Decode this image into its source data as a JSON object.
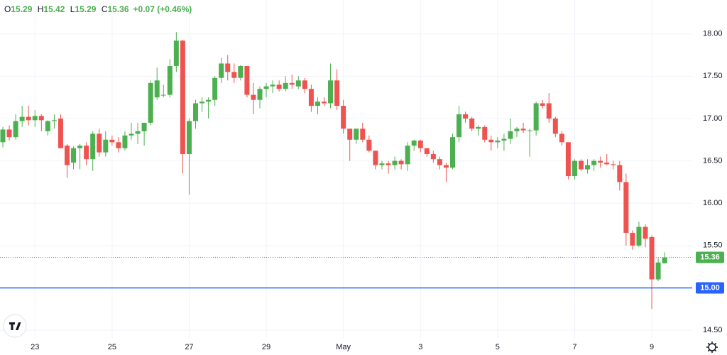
{
  "chart_data": {
    "type": "candlestick",
    "ohlc_labels": [
      "O",
      "H",
      "L",
      "C"
    ],
    "ohlc_values": [
      15.29,
      15.42,
      15.29,
      15.36
    ],
    "change": "+0.07 (+0.46%)",
    "categories": [
      null,
      null,
      null,
      null,
      null,
      "23",
      null,
      null,
      null,
      null,
      null,
      null,
      null,
      null,
      null,
      null,
      null,
      "25",
      null,
      null,
      null,
      null,
      null,
      null,
      null,
      null,
      null,
      null,
      null,
      "27",
      null,
      null,
      null,
      null,
      null,
      null,
      null,
      null,
      null,
      null,
      null,
      "29",
      null,
      null,
      null,
      null,
      null,
      null,
      null,
      null,
      null,
      null,
      null,
      "May",
      null,
      null,
      null,
      null,
      null,
      null,
      null,
      null,
      null,
      null,
      null,
      "3",
      null,
      null,
      null,
      null,
      null,
      null,
      null,
      null,
      null,
      null,
      null,
      "5",
      null,
      null,
      null,
      null,
      null,
      null,
      null,
      null,
      null,
      null,
      null,
      "7",
      null,
      null,
      null,
      null,
      null,
      null,
      null,
      null,
      null,
      null,
      null,
      "9",
      null,
      null
    ],
    "open": [
      16.72,
      16.87,
      16.78,
      16.97,
      17.02,
      16.98,
      17.03,
      16.85,
      16.97,
      17.0,
      16.68,
      16.48,
      16.65,
      16.68,
      16.52,
      16.82,
      16.6,
      16.75,
      16.72,
      16.65,
      16.8,
      16.82,
      16.85,
      16.95,
      17.25,
      17.28,
      17.28,
      17.62,
      17.92,
      16.58,
      16.97,
      17.18,
      17.2,
      17.22,
      17.48,
      17.65,
      17.55,
      17.48,
      17.62,
      17.28,
      17.22,
      17.35,
      17.38,
      17.4,
      17.35,
      17.42,
      17.38,
      17.45,
      17.35,
      17.15,
      17.2,
      17.18,
      17.45,
      17.15,
      16.88,
      16.75,
      16.88,
      16.75,
      16.62,
      16.45,
      16.47,
      16.45,
      16.5,
      16.46,
      16.68,
      16.74,
      16.65,
      16.58,
      16.52,
      16.45,
      16.42,
      16.78,
      17.05,
      17.0,
      16.88,
      16.9,
      16.75,
      16.72,
      16.74,
      16.76,
      16.85,
      16.88,
      16.86,
      16.86,
      17.18,
      17.18,
      17.0,
      16.82,
      16.72,
      16.32,
      16.5,
      16.4,
      16.45,
      16.5,
      16.48,
      16.46,
      16.45,
      16.25,
      15.65,
      15.5,
      15.72,
      15.6,
      15.1,
      15.29
    ],
    "high": [
      16.9,
      16.92,
      17.05,
      17.15,
      17.15,
      17.1,
      17.05,
      16.98,
      17.05,
      17.05,
      16.7,
      16.67,
      16.7,
      16.72,
      16.85,
      16.88,
      16.85,
      16.8,
      16.78,
      16.85,
      16.95,
      16.95,
      16.95,
      17.45,
      17.6,
      17.4,
      17.7,
      18.02,
      17.93,
      17.0,
      17.22,
      17.25,
      17.25,
      17.5,
      17.72,
      17.75,
      17.65,
      17.63,
      17.62,
      17.42,
      17.38,
      17.42,
      17.45,
      17.45,
      17.5,
      17.52,
      17.5,
      17.48,
      17.4,
      17.25,
      17.25,
      17.65,
      17.58,
      17.22,
      16.88,
      16.88,
      16.95,
      16.8,
      16.62,
      16.5,
      16.5,
      16.55,
      16.52,
      16.72,
      16.75,
      16.75,
      16.65,
      16.62,
      16.55,
      16.48,
      16.82,
      17.15,
      17.08,
      17.02,
      16.92,
      16.92,
      16.8,
      16.78,
      16.82,
      17.0,
      16.9,
      16.95,
      16.88,
      17.2,
      17.22,
      17.3,
      17.02,
      16.85,
      16.72,
      16.52,
      16.52,
      16.52,
      16.52,
      16.55,
      16.58,
      16.5,
      16.5,
      16.35,
      15.68,
      15.78,
      15.75,
      15.62,
      15.35,
      15.42
    ],
    "low": [
      16.66,
      16.74,
      16.75,
      16.9,
      16.92,
      16.9,
      16.85,
      16.8,
      16.88,
      16.65,
      16.3,
      16.4,
      16.4,
      16.45,
      16.38,
      16.55,
      16.55,
      16.68,
      16.6,
      16.62,
      16.75,
      16.7,
      16.68,
      16.92,
      17.22,
      17.25,
      17.25,
      17.55,
      16.35,
      16.1,
      16.88,
      17.08,
      17.0,
      17.15,
      17.42,
      17.45,
      17.42,
      17.45,
      17.25,
      17.05,
      17.12,
      17.25,
      17.3,
      17.32,
      17.32,
      17.35,
      17.35,
      17.3,
      17.08,
      17.05,
      17.15,
      17.12,
      17.1,
      16.82,
      16.5,
      16.7,
      16.72,
      16.6,
      16.4,
      16.4,
      16.35,
      16.4,
      16.4,
      16.38,
      16.62,
      16.6,
      16.55,
      16.48,
      16.4,
      16.25,
      16.4,
      16.72,
      16.95,
      16.85,
      16.8,
      16.72,
      16.62,
      16.65,
      16.62,
      16.7,
      16.78,
      16.83,
      16.55,
      16.8,
      17.12,
      16.95,
      16.78,
      16.68,
      16.28,
      16.28,
      16.38,
      16.35,
      16.38,
      16.42,
      16.45,
      16.4,
      16.15,
      15.5,
      15.45,
      15.48,
      15.48,
      14.75,
      15.08,
      15.29
    ],
    "close": [
      16.87,
      16.78,
      16.97,
      17.02,
      16.98,
      17.03,
      16.98,
      16.97,
      16.98,
      16.65,
      16.45,
      16.65,
      16.68,
      16.52,
      16.82,
      16.6,
      16.75,
      16.72,
      16.65,
      16.8,
      16.82,
      16.85,
      16.95,
      17.42,
      17.45,
      17.28,
      17.62,
      17.92,
      16.58,
      16.97,
      17.18,
      17.2,
      17.22,
      17.48,
      17.65,
      17.55,
      17.48,
      17.62,
      17.28,
      17.22,
      17.35,
      17.38,
      17.4,
      17.35,
      17.42,
      17.4,
      17.45,
      17.35,
      17.15,
      17.2,
      17.18,
      17.45,
      17.15,
      16.88,
      16.75,
      16.88,
      16.75,
      16.62,
      16.45,
      16.47,
      16.45,
      16.5,
      16.46,
      16.68,
      16.74,
      16.65,
      16.58,
      16.52,
      16.45,
      16.42,
      16.78,
      17.05,
      17.0,
      16.88,
      16.9,
      16.75,
      16.72,
      16.74,
      16.76,
      16.85,
      16.88,
      16.86,
      16.86,
      17.18,
      17.15,
      17.0,
      16.82,
      16.72,
      16.32,
      16.5,
      16.4,
      16.45,
      16.5,
      16.48,
      16.46,
      16.45,
      16.25,
      15.65,
      15.5,
      15.72,
      15.58,
      15.1,
      15.3,
      15.36
    ],
    "up_color": "#4caf50",
    "down_color": "#ef5350",
    "ylim": [
      14.4,
      18.4
    ],
    "yticks": [
      {
        "value": 14.5,
        "label": "14.50"
      },
      {
        "value": 15,
        "label": "15.00"
      },
      {
        "value": 15.5,
        "label": "15.50"
      },
      {
        "value": 16,
        "label": "16.00"
      },
      {
        "value": 16.5,
        "label": "16.50"
      },
      {
        "value": 17,
        "label": "17.00"
      },
      {
        "value": 17.5,
        "label": "17.50"
      },
      {
        "value": 18,
        "label": "18.00"
      }
    ],
    "grid": true,
    "price_line": {
      "value": 15.36,
      "label": "15.36",
      "color": "#4caf50"
    },
    "alert_line": {
      "value": 15,
      "label": "15.00",
      "color": "#2962ff"
    }
  }
}
